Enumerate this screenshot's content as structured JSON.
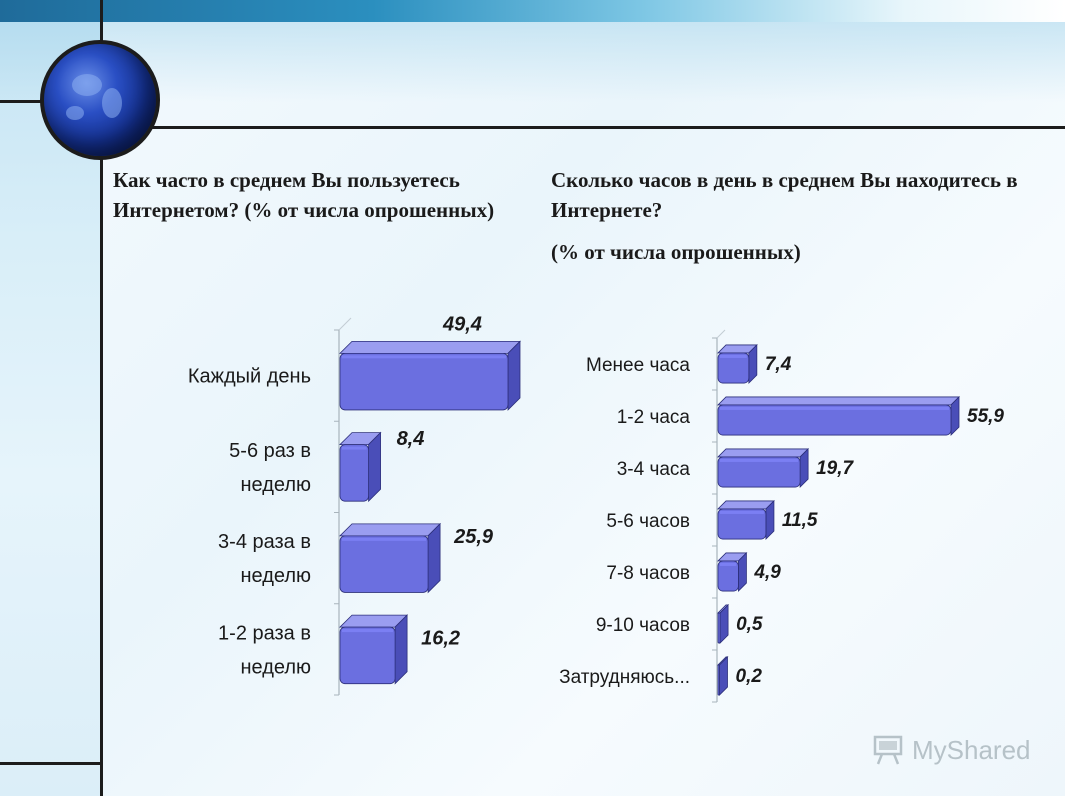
{
  "questions": {
    "q1": "Как часто в среднем Вы пользуетесь Интернетом? (% от числа опрошенных)",
    "q2_line1": "Сколько часов в день в среднем Вы находитесь в Интернете?",
    "q2_line2": "(% от числа опрошенных)"
  },
  "watermark": "MyShared",
  "colors": {
    "bar_front": "#6b6fe0",
    "bar_top": "#9a9df0",
    "bar_side": "#4a4eb8",
    "bar_edge": "#2c2f7a"
  },
  "chart_data": [
    {
      "type": "bar",
      "orientation": "horizontal",
      "categories": [
        "Каждый день",
        "5-6 раз в неделю",
        "3-4 раза в неделю",
        "1-2 раза в неделю"
      ],
      "values": [
        49.4,
        8.4,
        25.9,
        16.2
      ],
      "labels": [
        "49,4",
        "8,4",
        "25,9",
        "16,2"
      ],
      "xlim": [
        0,
        55
      ],
      "grid": false
    },
    {
      "type": "bar",
      "orientation": "horizontal",
      "categories": [
        "Менее часа",
        "1-2 часа",
        "3-4 часа",
        "5-6 часов",
        "7-8 часов",
        "9-10 часов",
        "Затрудняюсь..."
      ],
      "values": [
        7.4,
        55.9,
        19.7,
        11.5,
        4.9,
        0.5,
        0.2
      ],
      "labels": [
        "7,4",
        "55,9",
        "19,7",
        "11,5",
        "4,9",
        "0,5",
        "0,2"
      ],
      "xlim": [
        0,
        60
      ],
      "grid": false
    }
  ]
}
